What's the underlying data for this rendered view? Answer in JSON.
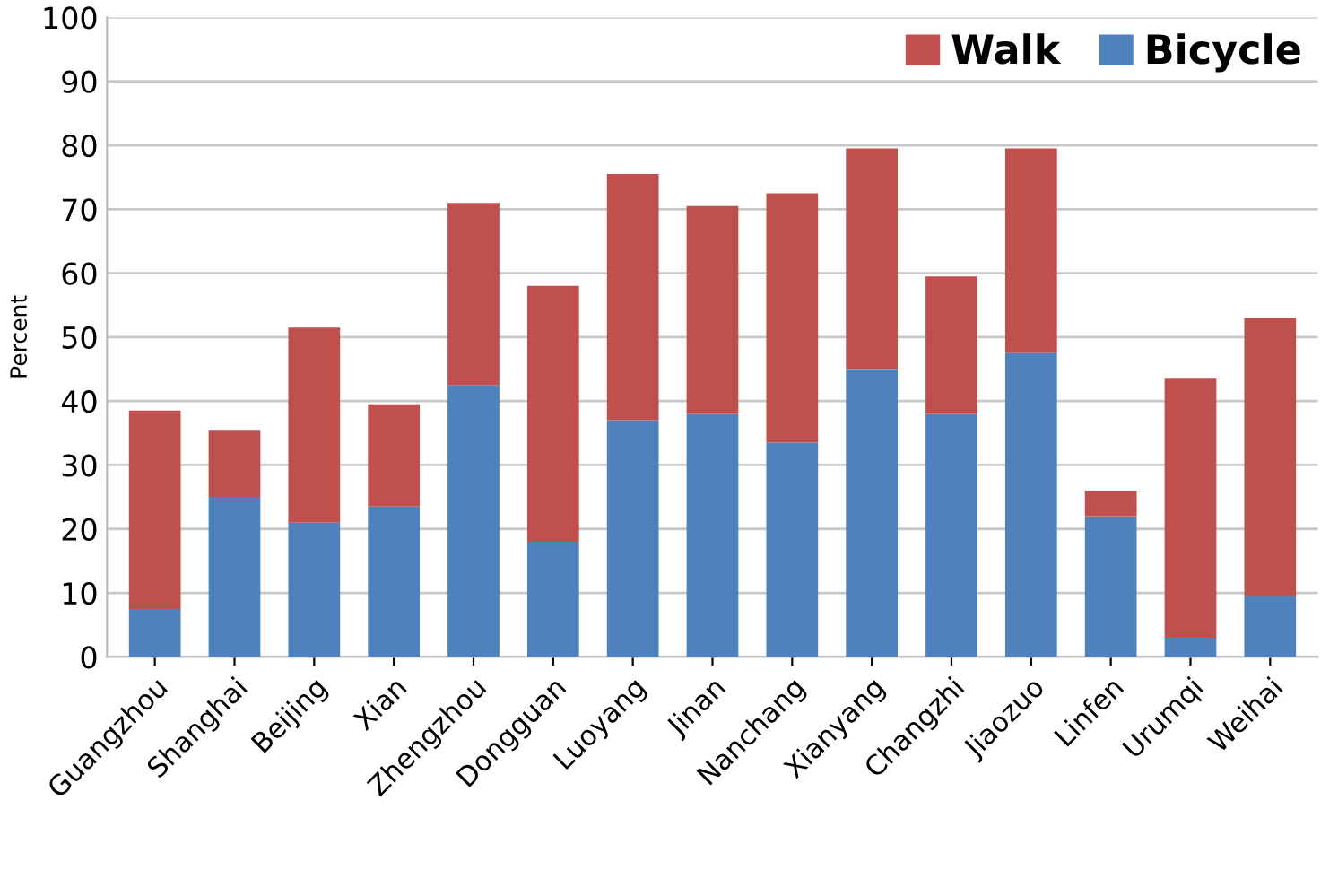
{
  "chart_data": {
    "type": "bar",
    "stacked": true,
    "ylabel": "Percent",
    "categories": [
      "Guangzhou",
      "Shanghai",
      "Beijing",
      "Xian",
      "Zhengzhou",
      "Dongguan",
      "Luoyang",
      "Jinan",
      "Nanchang",
      "Xianyang",
      "Changzhi",
      "Jiaozuo",
      "Linfen",
      "Urumqi",
      "Weihai"
    ],
    "series": [
      {
        "name": "Bicycle",
        "color": "#4f81bd",
        "values": [
          7.5,
          25,
          21,
          23.5,
          42.5,
          18,
          37,
          38,
          33.5,
          45,
          38,
          47.5,
          22,
          3,
          9.5
        ]
      },
      {
        "name": "Walk",
        "color": "#c0504d",
        "values": [
          31,
          10.5,
          30.5,
          16,
          28.5,
          40,
          38.5,
          32.5,
          39,
          34.5,
          21.5,
          32,
          4,
          40.5,
          43.5
        ]
      }
    ],
    "ylim": [
      0,
      100
    ],
    "yticks": [
      0,
      10,
      20,
      30,
      40,
      50,
      60,
      70,
      80,
      90,
      100
    ],
    "grid": "y",
    "legend": "top right"
  }
}
